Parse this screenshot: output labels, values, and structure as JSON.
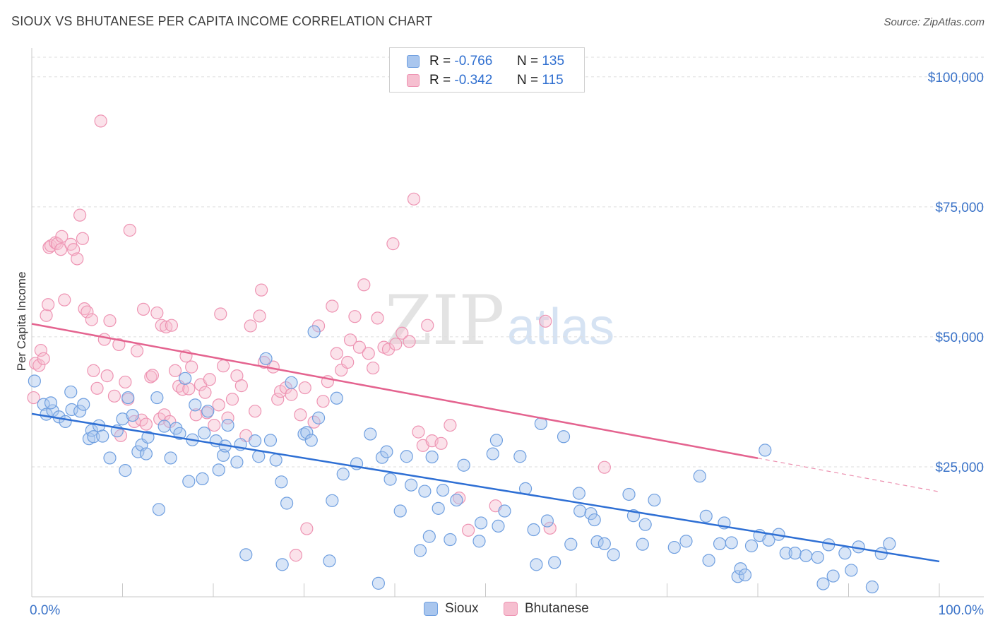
{
  "header": {
    "title": "SIOUX VS BHUTANESE PER CAPITA INCOME CORRELATION CHART",
    "source": "Source: ZipAtlas.com"
  },
  "watermark": {
    "zip": "ZIP",
    "atlas": "atlas"
  },
  "legend": {
    "rows": [
      {
        "r_label": "R =",
        "r_value": "-0.766",
        "n_label": "N =",
        "n_value": "135"
      },
      {
        "r_label": "R =",
        "r_value": "-0.342",
        "n_label": "N =",
        "n_value": "115"
      }
    ]
  },
  "bottom_legend": {
    "sioux": "Sioux",
    "bhutanese": "Bhutanese"
  },
  "colors": {
    "sioux_fill": "#a9c6ee",
    "sioux_stroke": "#6f9fe0",
    "sioux_line": "#2e6fd4",
    "bhutanese_fill": "#f6bfd0",
    "bhutanese_stroke": "#ee94b3",
    "bhutanese_line": "#e4638f",
    "tick_text": "#3b73c8",
    "grid": "#dedede"
  },
  "chart_data": {
    "type": "scatter",
    "title": "SIOUX VS BHUTANESE PER CAPITA INCOME CORRELATION CHART",
    "xlabel": "",
    "ylabel": "Per Capita Income",
    "xlim": [
      0,
      100
    ],
    "ylim": [
      0,
      105000
    ],
    "x_tick_labels": [
      "0.0%",
      "100.0%"
    ],
    "y_ticks": [
      25000,
      50000,
      75000,
      100000
    ],
    "y_tick_labels": [
      "$25,000",
      "$50,000",
      "$75,000",
      "$100,000"
    ],
    "grid": true,
    "legend_position": "top-center",
    "series": [
      {
        "name": "Sioux",
        "r": -0.766,
        "n": 135,
        "trend": {
          "x": [
            0,
            100
          ],
          "y": [
            35200,
            6800
          ],
          "solid_until": 100
        },
        "points": [
          [
            0.3,
            41500
          ],
          [
            1.3,
            37000
          ],
          [
            1.6,
            35100
          ],
          [
            2.3,
            35800
          ],
          [
            2.1,
            37300
          ],
          [
            3.0,
            34600
          ],
          [
            3.7,
            33700
          ],
          [
            4.3,
            39400
          ],
          [
            4.4,
            36000
          ],
          [
            5.3,
            35700
          ],
          [
            5.7,
            37000
          ],
          [
            6.3,
            30400
          ],
          [
            6.6,
            32000
          ],
          [
            6.8,
            30800
          ],
          [
            7.4,
            32900
          ],
          [
            7.8,
            30900
          ],
          [
            8.6,
            26700
          ],
          [
            9.4,
            31900
          ],
          [
            10.0,
            34200
          ],
          [
            10.3,
            24300
          ],
          [
            10.6,
            38300
          ],
          [
            11.1,
            34900
          ],
          [
            11.7,
            27900
          ],
          [
            12.1,
            29200
          ],
          [
            12.6,
            27500
          ],
          [
            12.8,
            30700
          ],
          [
            13.8,
            38300
          ],
          [
            14.0,
            16800
          ],
          [
            14.6,
            32800
          ],
          [
            15.3,
            26700
          ],
          [
            15.9,
            32400
          ],
          [
            16.3,
            31400
          ],
          [
            16.9,
            42000
          ],
          [
            17.3,
            22200
          ],
          [
            17.7,
            30200
          ],
          [
            18.0,
            36900
          ],
          [
            18.8,
            22700
          ],
          [
            19.0,
            31500
          ],
          [
            19.4,
            35700
          ],
          [
            20.3,
            30000
          ],
          [
            20.6,
            24400
          ],
          [
            21.1,
            27200
          ],
          [
            21.3,
            29000
          ],
          [
            21.6,
            33000
          ],
          [
            22.6,
            25900
          ],
          [
            23.0,
            29300
          ],
          [
            23.6,
            8100
          ],
          [
            24.6,
            30000
          ],
          [
            25.0,
            27000
          ],
          [
            25.8,
            45800
          ],
          [
            26.3,
            30100
          ],
          [
            26.9,
            26300
          ],
          [
            27.5,
            22100
          ],
          [
            27.6,
            6200
          ],
          [
            28.1,
            18000
          ],
          [
            28.6,
            41200
          ],
          [
            30.0,
            31300
          ],
          [
            30.3,
            31600
          ],
          [
            30.8,
            30100
          ],
          [
            31.1,
            51000
          ],
          [
            31.6,
            34400
          ],
          [
            32.8,
            6900
          ],
          [
            33.1,
            18500
          ],
          [
            33.6,
            38200
          ],
          [
            34.3,
            23600
          ],
          [
            35.8,
            25600
          ],
          [
            37.3,
            31300
          ],
          [
            38.2,
            2600
          ],
          [
            38.6,
            26800
          ],
          [
            39.1,
            27900
          ],
          [
            39.5,
            22600
          ],
          [
            40.6,
            16500
          ],
          [
            41.3,
            27000
          ],
          [
            41.8,
            21500
          ],
          [
            42.8,
            8900
          ],
          [
            43.3,
            20300
          ],
          [
            43.8,
            11600
          ],
          [
            44.1,
            26900
          ],
          [
            44.8,
            17000
          ],
          [
            45.3,
            20500
          ],
          [
            46.1,
            11000
          ],
          [
            46.8,
            18600
          ],
          [
            47.6,
            25300
          ],
          [
            49.3,
            10700
          ],
          [
            49.5,
            14200
          ],
          [
            50.8,
            27500
          ],
          [
            51.2,
            30100
          ],
          [
            51.4,
            13600
          ],
          [
            52.1,
            16500
          ],
          [
            53.8,
            27000
          ],
          [
            54.4,
            20800
          ],
          [
            55.3,
            12900
          ],
          [
            55.6,
            6200
          ],
          [
            56.1,
            33300
          ],
          [
            56.8,
            14600
          ],
          [
            57.6,
            6600
          ],
          [
            58.6,
            30800
          ],
          [
            59.4,
            10100
          ],
          [
            60.3,
            19900
          ],
          [
            60.4,
            16500
          ],
          [
            61.6,
            16000
          ],
          [
            62.0,
            14800
          ],
          [
            62.3,
            10600
          ],
          [
            63.1,
            10200
          ],
          [
            64.1,
            8100
          ],
          [
            65.8,
            19700
          ],
          [
            66.3,
            15600
          ],
          [
            67.3,
            10100
          ],
          [
            67.6,
            13900
          ],
          [
            68.6,
            18600
          ],
          [
            70.8,
            9500
          ],
          [
            72.1,
            10700
          ],
          [
            73.6,
            23200
          ],
          [
            74.3,
            15500
          ],
          [
            74.6,
            7000
          ],
          [
            75.8,
            10200
          ],
          [
            76.3,
            14200
          ],
          [
            77.1,
            10400
          ],
          [
            77.8,
            3900
          ],
          [
            78.1,
            5400
          ],
          [
            78.6,
            4200
          ],
          [
            79.3,
            9800
          ],
          [
            80.2,
            11800
          ],
          [
            80.8,
            28200
          ],
          [
            81.2,
            10900
          ],
          [
            82.3,
            12000
          ],
          [
            83.1,
            8400
          ],
          [
            84.1,
            8400
          ],
          [
            85.3,
            7900
          ],
          [
            86.6,
            7600
          ],
          [
            87.2,
            2500
          ],
          [
            87.8,
            10000
          ],
          [
            88.3,
            4000
          ],
          [
            89.6,
            8400
          ],
          [
            90.3,
            5100
          ],
          [
            91.1,
            9600
          ],
          [
            92.6,
            1900
          ],
          [
            93.6,
            8300
          ],
          [
            94.5,
            10200
          ]
        ]
      },
      {
        "name": "Bhutanese",
        "r": -0.342,
        "n": 115,
        "trend": {
          "x": [
            0,
            100
          ],
          "y": [
            52500,
            20200
          ],
          "solid_until": 80
        },
        "points": [
          [
            0.2,
            38300
          ],
          [
            0.4,
            44900
          ],
          [
            0.8,
            44500
          ],
          [
            1.0,
            47400
          ],
          [
            1.3,
            45800
          ],
          [
            1.6,
            54100
          ],
          [
            1.8,
            56200
          ],
          [
            1.9,
            67200
          ],
          [
            2.1,
            67500
          ],
          [
            2.6,
            68100
          ],
          [
            2.8,
            67900
          ],
          [
            3.2,
            66800
          ],
          [
            3.3,
            69300
          ],
          [
            3.6,
            57100
          ],
          [
            4.3,
            67800
          ],
          [
            4.6,
            66800
          ],
          [
            5.0,
            65000
          ],
          [
            5.3,
            73400
          ],
          [
            5.6,
            68900
          ],
          [
            5.8,
            55400
          ],
          [
            6.1,
            54800
          ],
          [
            6.6,
            53300
          ],
          [
            6.8,
            43500
          ],
          [
            7.2,
            40100
          ],
          [
            7.6,
            91500
          ],
          [
            8.0,
            49500
          ],
          [
            8.3,
            42500
          ],
          [
            8.6,
            53100
          ],
          [
            9.1,
            38600
          ],
          [
            9.6,
            48500
          ],
          [
            9.8,
            31000
          ],
          [
            10.3,
            41300
          ],
          [
            10.6,
            38000
          ],
          [
            10.8,
            70500
          ],
          [
            11.3,
            33700
          ],
          [
            11.6,
            47300
          ],
          [
            12.1,
            34000
          ],
          [
            12.3,
            55300
          ],
          [
            12.6,
            33200
          ],
          [
            13.1,
            42300
          ],
          [
            13.3,
            42600
          ],
          [
            13.8,
            54600
          ],
          [
            14.1,
            34200
          ],
          [
            14.3,
            52200
          ],
          [
            14.6,
            35000
          ],
          [
            14.8,
            51900
          ],
          [
            15.2,
            33700
          ],
          [
            15.4,
            52200
          ],
          [
            15.8,
            43500
          ],
          [
            16.2,
            40500
          ],
          [
            16.6,
            39900
          ],
          [
            17.0,
            46300
          ],
          [
            17.3,
            40000
          ],
          [
            17.6,
            44200
          ],
          [
            18.1,
            35000
          ],
          [
            18.6,
            40800
          ],
          [
            19.1,
            39300
          ],
          [
            19.3,
            35400
          ],
          [
            19.6,
            41800
          ],
          [
            20.1,
            33000
          ],
          [
            20.6,
            36900
          ],
          [
            20.8,
            54400
          ],
          [
            21.1,
            44400
          ],
          [
            21.6,
            34400
          ],
          [
            22.1,
            38000
          ],
          [
            22.6,
            42500
          ],
          [
            23.1,
            40600
          ],
          [
            23.6,
            31000
          ],
          [
            24.1,
            52100
          ],
          [
            24.6,
            35700
          ],
          [
            25.1,
            54000
          ],
          [
            25.3,
            59000
          ],
          [
            25.6,
            45100
          ],
          [
            26.6,
            44200
          ],
          [
            27.1,
            38000
          ],
          [
            27.4,
            39500
          ],
          [
            28.0,
            40200
          ],
          [
            28.6,
            38900
          ],
          [
            29.1,
            8000
          ],
          [
            29.6,
            35000
          ],
          [
            30.1,
            40200
          ],
          [
            30.3,
            13100
          ],
          [
            31.1,
            33600
          ],
          [
            31.6,
            52100
          ],
          [
            32.1,
            37600
          ],
          [
            32.6,
            41400
          ],
          [
            33.1,
            55900
          ],
          [
            33.6,
            46800
          ],
          [
            34.1,
            43600
          ],
          [
            34.8,
            45100
          ],
          [
            35.1,
            49400
          ],
          [
            35.6,
            53900
          ],
          [
            36.1,
            48000
          ],
          [
            36.6,
            60000
          ],
          [
            37.1,
            46800
          ],
          [
            37.6,
            44000
          ],
          [
            38.1,
            53600
          ],
          [
            38.8,
            48000
          ],
          [
            39.3,
            47600
          ],
          [
            39.8,
            67900
          ],
          [
            40.1,
            48600
          ],
          [
            40.8,
            50700
          ],
          [
            41.6,
            49100
          ],
          [
            42.1,
            76500
          ],
          [
            42.6,
            31700
          ],
          [
            43.1,
            29100
          ],
          [
            43.6,
            52200
          ],
          [
            44.1,
            30000
          ],
          [
            45.1,
            29500
          ],
          [
            46.1,
            33000
          ],
          [
            47.1,
            19000
          ],
          [
            48.1,
            12800
          ],
          [
            51.1,
            17500
          ],
          [
            56.6,
            53000
          ],
          [
            57.1,
            13200
          ],
          [
            63.1,
            24900
          ]
        ]
      }
    ]
  }
}
